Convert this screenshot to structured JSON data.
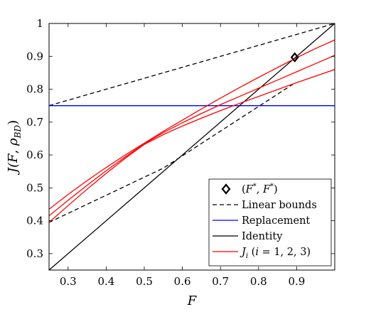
{
  "chart_data": {
    "type": "line",
    "xlabel": "F",
    "ylabel": "J(F, ρ_BD)",
    "xlim": [
      0.25,
      1.0
    ],
    "ylim": [
      0.25,
      1.0
    ],
    "xticks": [
      "0.3",
      "0.4",
      "0.5",
      "0.6",
      "0.7",
      "0.8",
      "0.9"
    ],
    "yticks": [
      "0.3",
      "0.4",
      "0.5",
      "0.6",
      "0.7",
      "0.8",
      "0.9",
      "1"
    ],
    "grid": false,
    "legend_position": "bottom-right",
    "series": [
      {
        "name": "Linear bounds",
        "style": "dashed",
        "color": "#000000",
        "segments": [
          {
            "x": [
              0.25,
              1.0
            ],
            "y": [
              0.75,
              1.0
            ]
          },
          {
            "x": [
              0.25,
              0.55,
              0.89
            ],
            "y": [
              0.395,
              0.56,
              0.815
            ]
          }
        ]
      },
      {
        "name": "Replacement",
        "color": "#0000ff",
        "x": [
          0.25,
          1.0
        ],
        "y": [
          0.75,
          0.75
        ]
      },
      {
        "name": "Identity",
        "color": "#000000",
        "x": [
          0.25,
          1.0
        ],
        "y": [
          0.25,
          1.0
        ]
      },
      {
        "name": "J_i (i=1,2,3)",
        "color": "#ff0000",
        "curves": [
          {
            "x": [
              0.25,
              0.3,
              0.35,
              0.4,
              0.45,
              0.5,
              0.55,
              0.6,
              0.65,
              0.7,
              0.75,
              0.8,
              0.85,
              0.9,
              0.95,
              1.0
            ],
            "y": [
              0.435,
              0.48,
              0.522,
              0.562,
              0.6,
              0.636,
              0.672,
              0.706,
              0.74,
              0.773,
              0.805,
              0.836,
              0.866,
              0.896,
              0.924,
              0.95
            ]
          },
          {
            "x": [
              0.25,
              0.3,
              0.35,
              0.4,
              0.45,
              0.5,
              0.55,
              0.6,
              0.65,
              0.7,
              0.75,
              0.8,
              0.85,
              0.9,
              0.95,
              1.0
            ],
            "y": [
              0.415,
              0.462,
              0.508,
              0.552,
              0.594,
              0.634,
              0.668,
              0.698,
              0.726,
              0.753,
              0.778,
              0.803,
              0.828,
              0.853,
              0.878,
              0.903
            ]
          },
          {
            "x": [
              0.25,
              0.3,
              0.35,
              0.4,
              0.45,
              0.5,
              0.55,
              0.6,
              0.65,
              0.7,
              0.75,
              0.8,
              0.85,
              0.9,
              0.95,
              1.0
            ],
            "y": [
              0.395,
              0.446,
              0.496,
              0.544,
              0.59,
              0.632,
              0.662,
              0.688,
              0.712,
              0.735,
              0.757,
              0.778,
              0.799,
              0.82,
              0.84,
              0.86
            ]
          }
        ]
      },
      {
        "name": "(F*, F*)",
        "marker": "diamond",
        "color": "#000000",
        "x": [
          0.895
        ],
        "y": [
          0.897
        ]
      }
    ]
  },
  "legend": {
    "items": [
      {
        "label": "(F*, F*)"
      },
      {
        "label": "Linear bounds"
      },
      {
        "label": "Replacement"
      },
      {
        "label": "Identity"
      },
      {
        "label": "J_i (i = 1, 2, 3)"
      }
    ]
  }
}
